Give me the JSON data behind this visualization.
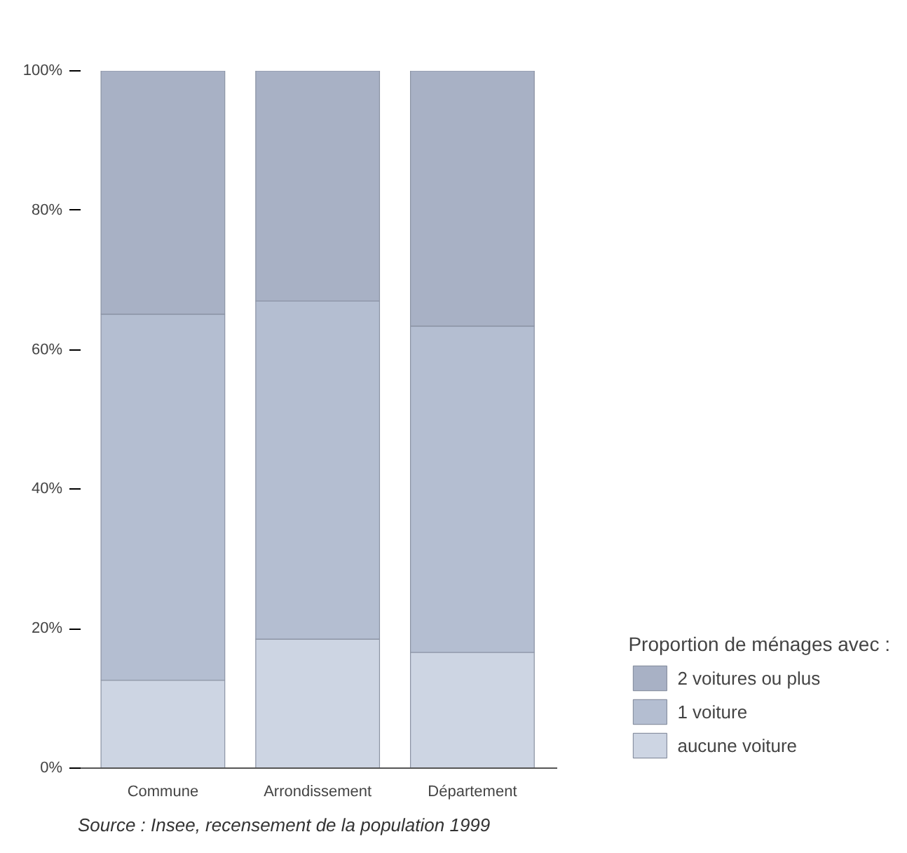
{
  "chart_data": {
    "type": "bar",
    "stacked": true,
    "categories": [
      "Commune",
      "Arrondissement",
      "Département"
    ],
    "series": [
      {
        "name": "aucune voiture",
        "color": "#cdd5e3",
        "values": [
          12.6,
          18.5,
          16.6
        ]
      },
      {
        "name": "1 voiture",
        "color": "#b4bed1",
        "values": [
          52.5,
          48.5,
          46.8
        ]
      },
      {
        "name": "2 voitures ou plus",
        "color": "#a8b1c5",
        "values": [
          34.9,
          33.0,
          36.6
        ]
      }
    ],
    "ylim": [
      0,
      100
    ],
    "yticks": [
      {
        "value": 0,
        "label": "0%"
      },
      {
        "value": 20,
        "label": "20%"
      },
      {
        "value": 40,
        "label": "40%"
      },
      {
        "value": 60,
        "label": "60%"
      },
      {
        "value": 80,
        "label": "80%"
      },
      {
        "value": 100,
        "label": "100%"
      }
    ],
    "legend_title": "Proportion de ménages avec :",
    "legend": "bottom right",
    "grid": false,
    "annotations": [
      "Source : Insee, recensement de la population 1999"
    ]
  }
}
